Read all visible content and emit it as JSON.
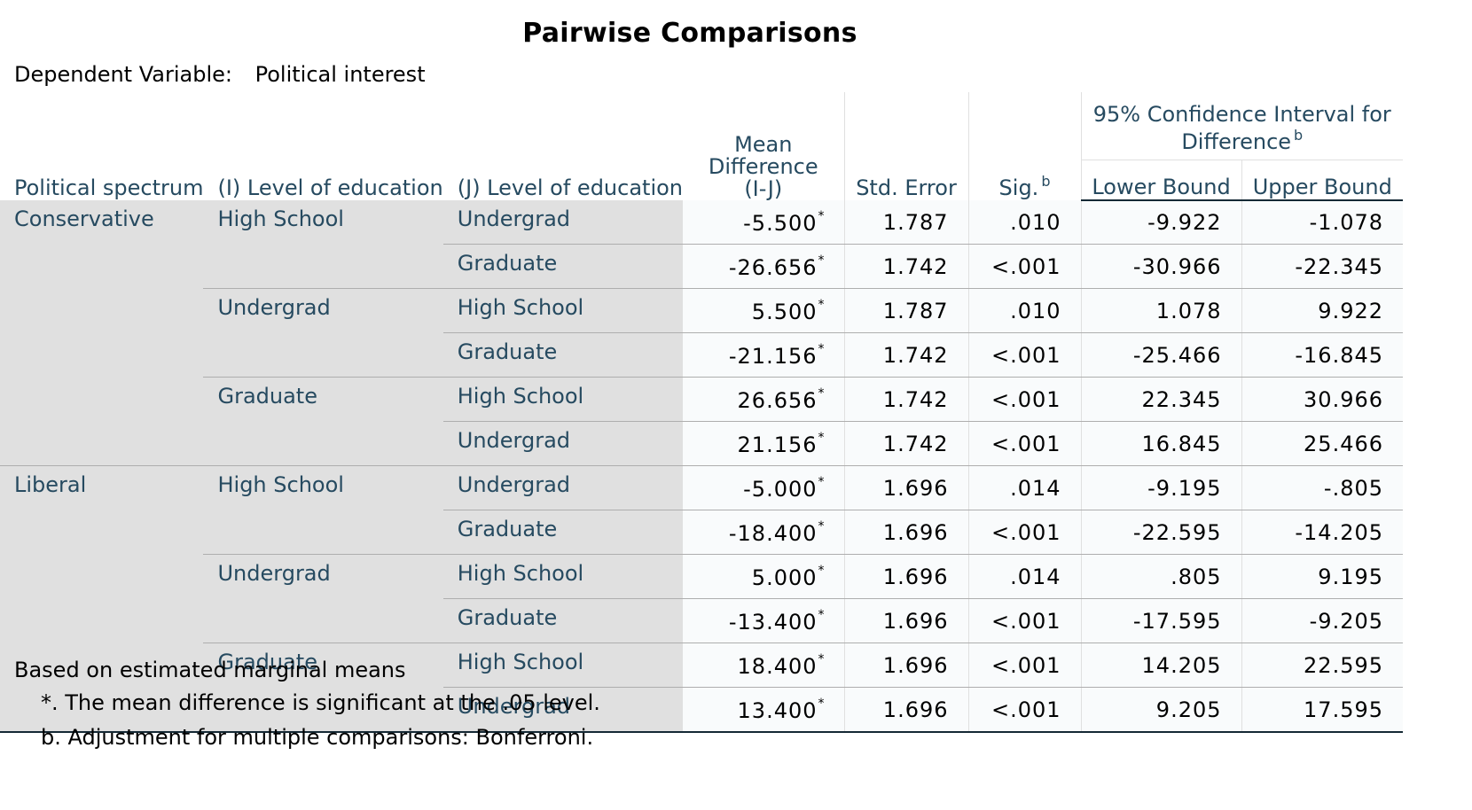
{
  "title": "Pairwise Comparisons",
  "dependent_variable": {
    "label": "Dependent Variable:",
    "value": "Political interest"
  },
  "headers": {
    "political_spectrum": "Political spectrum",
    "i_level": "(I) Level of education",
    "j_level": "(J) Level of education",
    "mean_difference": "Mean Difference (I-J)",
    "std_error": "Std. Error",
    "sig": "Sig.",
    "sig_footnote": "b",
    "ci": "95% Confidence Interval for Difference",
    "ci_footnote": "b",
    "lower_bound": "Lower Bound",
    "upper_bound": "Upper Bound"
  },
  "groups": [
    {
      "spectrum": "Conservative",
      "i_groups": [
        {
          "i_level": "High School",
          "rows": [
            {
              "j_level": "Undergrad",
              "mean_diff": "-5.500",
              "sig_mark": "*",
              "std_error": "1.787",
              "sig": ".010",
              "lower": "-9.922",
              "upper": "-1.078"
            },
            {
              "j_level": "Graduate",
              "mean_diff": "-26.656",
              "sig_mark": "*",
              "std_error": "1.742",
              "sig": "<.001",
              "lower": "-30.966",
              "upper": "-22.345"
            }
          ]
        },
        {
          "i_level": "Undergrad",
          "rows": [
            {
              "j_level": "High School",
              "mean_diff": "5.500",
              "sig_mark": "*",
              "std_error": "1.787",
              "sig": ".010",
              "lower": "1.078",
              "upper": "9.922"
            },
            {
              "j_level": "Graduate",
              "mean_diff": "-21.156",
              "sig_mark": "*",
              "std_error": "1.742",
              "sig": "<.001",
              "lower": "-25.466",
              "upper": "-16.845"
            }
          ]
        },
        {
          "i_level": "Graduate",
          "rows": [
            {
              "j_level": "High School",
              "mean_diff": "26.656",
              "sig_mark": "*",
              "std_error": "1.742",
              "sig": "<.001",
              "lower": "22.345",
              "upper": "30.966"
            },
            {
              "j_level": "Undergrad",
              "mean_diff": "21.156",
              "sig_mark": "*",
              "std_error": "1.742",
              "sig": "<.001",
              "lower": "16.845",
              "upper": "25.466"
            }
          ]
        }
      ]
    },
    {
      "spectrum": "Liberal",
      "i_groups": [
        {
          "i_level": "High School",
          "rows": [
            {
              "j_level": "Undergrad",
              "mean_diff": "-5.000",
              "sig_mark": "*",
              "std_error": "1.696",
              "sig": ".014",
              "lower": "-9.195",
              "upper": "-.805"
            },
            {
              "j_level": "Graduate",
              "mean_diff": "-18.400",
              "sig_mark": "*",
              "std_error": "1.696",
              "sig": "<.001",
              "lower": "-22.595",
              "upper": "-14.205"
            }
          ]
        },
        {
          "i_level": "Undergrad",
          "rows": [
            {
              "j_level": "High School",
              "mean_diff": "5.000",
              "sig_mark": "*",
              "std_error": "1.696",
              "sig": ".014",
              "lower": ".805",
              "upper": "9.195"
            },
            {
              "j_level": "Graduate",
              "mean_diff": "-13.400",
              "sig_mark": "*",
              "std_error": "1.696",
              "sig": "<.001",
              "lower": "-17.595",
              "upper": "-9.205"
            }
          ]
        },
        {
          "i_level": "Graduate",
          "rows": [
            {
              "j_level": "High School",
              "mean_diff": "18.400",
              "sig_mark": "*",
              "std_error": "1.696",
              "sig": "<.001",
              "lower": "14.205",
              "upper": "22.595"
            },
            {
              "j_level": "Undergrad",
              "mean_diff": "13.400",
              "sig_mark": "*",
              "std_error": "1.696",
              "sig": "<.001",
              "lower": "9.205",
              "upper": "17.595"
            }
          ]
        }
      ]
    }
  ],
  "footnotes": [
    "Based on estimated marginal means",
    "*. The mean difference is significant at the .05 level.",
    "b. Adjustment for multiple comparisons: Bonferroni."
  ],
  "colors": {
    "header_text": "#264a60",
    "label_background": "#e0e0e0",
    "data_background": "#f9fbfc",
    "rule": "#152935"
  }
}
